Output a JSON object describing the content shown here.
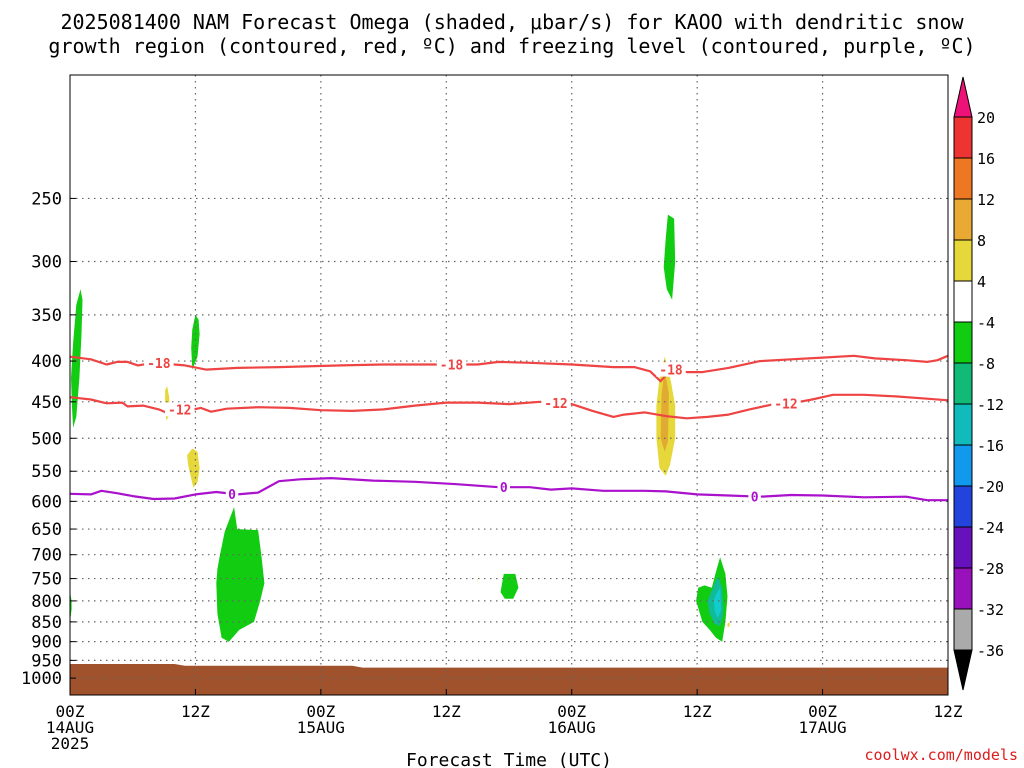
{
  "chart_data": {
    "type": "contour",
    "title": [
      "2025081400 NAM Forecast Omega (shaded, μbar/s) for KAOO with dendritic snow",
      "growth region (contoured, red, ºC) and freezing level (contoured, purple, ºC)"
    ],
    "xlabel": "Forecast Time (UTC)",
    "ylabel": "",
    "credit": "coolwx.com/models",
    "x_ticks": [
      {
        "h": 0,
        "label": [
          "00Z",
          "14AUG",
          "2025"
        ]
      },
      {
        "h": 12,
        "label": [
          "12Z"
        ]
      },
      {
        "h": 24,
        "label": [
          "00Z",
          "15AUG"
        ]
      },
      {
        "h": 36,
        "label": [
          "12Z"
        ]
      },
      {
        "h": 48,
        "label": [
          "00Z",
          "16AUG"
        ]
      },
      {
        "h": 60,
        "label": [
          "12Z"
        ]
      },
      {
        "h": 72,
        "label": [
          "00Z",
          "17AUG"
        ]
      },
      {
        "h": 84,
        "label": [
          "12Z"
        ]
      }
    ],
    "xlim": [
      0,
      84
    ],
    "y_ticks": [
      250,
      300,
      350,
      400,
      450,
      500,
      550,
      600,
      650,
      700,
      750,
      800,
      850,
      900,
      950,
      1000
    ],
    "ylim": [
      1050,
      175
    ],
    "y_scale": "log-pressure",
    "colorbar": {
      "labels": [
        "20",
        "16",
        "12",
        "8",
        "4",
        "-4",
        "-8",
        "-12",
        "-16",
        "-20",
        "-24",
        "-28",
        "-32",
        "-36"
      ],
      "colors": [
        "#ee1177",
        "#ee3333",
        "#ee7722",
        "#e8aa33",
        "#e6d83a",
        "#ffffff",
        "#11cc11",
        "#11bb77",
        "#11bbbb",
        "#1199ee",
        "#2244dd",
        "#6611bb",
        "#9911bb",
        "#aaaaaa",
        "#000000"
      ]
    },
    "surface_color": "#a0522d",
    "omega_colors": {
      "green": "#11cc11",
      "teal": "#11bb99",
      "cyan": "#11cccc",
      "yellow": "#e6d83a",
      "orange": "#e0aa33"
    },
    "series": [
      {
        "name": "-18",
        "color": "#ee4444",
        "label_hours": [
          8.5,
          36.5,
          57.5
        ],
        "points": [
          [
            0,
            395
          ],
          [
            2,
            398
          ],
          [
            3.5,
            404
          ],
          [
            4.5,
            401
          ],
          [
            5.5,
            401
          ],
          [
            6.5,
            405
          ],
          [
            8,
            402
          ],
          [
            11,
            405
          ],
          [
            13,
            410
          ],
          [
            16,
            408
          ],
          [
            20,
            407
          ],
          [
            26,
            405
          ],
          [
            30,
            404
          ],
          [
            36,
            404
          ],
          [
            39,
            404
          ],
          [
            41,
            401
          ],
          [
            44,
            402
          ],
          [
            48,
            404
          ],
          [
            52,
            407
          ],
          [
            54,
            407
          ],
          [
            55.5,
            412
          ],
          [
            56.5,
            424
          ],
          [
            57.5,
            410
          ],
          [
            59,
            413
          ],
          [
            60.5,
            413
          ],
          [
            63,
            408
          ],
          [
            66,
            400
          ],
          [
            69,
            398
          ],
          [
            72,
            396
          ],
          [
            75,
            394
          ],
          [
            77,
            397
          ],
          [
            80,
            399
          ],
          [
            82,
            401
          ],
          [
            83,
            399
          ],
          [
            84,
            394
          ]
        ]
      },
      {
        "name": "-12",
        "color": "#ee4444",
        "label_hours": [
          10.5,
          46.5,
          68.5
        ],
        "points": [
          [
            0,
            444
          ],
          [
            2,
            447
          ],
          [
            3.5,
            452
          ],
          [
            5,
            451
          ],
          [
            5.5,
            456
          ],
          [
            7,
            455
          ],
          [
            8.5,
            460
          ],
          [
            9.5,
            466
          ],
          [
            10.5,
            460
          ],
          [
            11.5,
            461
          ],
          [
            12.5,
            458
          ],
          [
            13.5,
            463
          ],
          [
            15,
            459
          ],
          [
            18,
            457
          ],
          [
            21,
            458
          ],
          [
            24,
            461
          ],
          [
            27,
            462
          ],
          [
            30,
            460
          ],
          [
            33,
            455
          ],
          [
            36,
            451
          ],
          [
            39,
            451
          ],
          [
            42,
            453
          ],
          [
            45,
            450
          ],
          [
            48,
            453
          ],
          [
            50,
            462
          ],
          [
            52,
            470
          ],
          [
            53,
            467
          ],
          [
            55,
            464
          ],
          [
            57,
            469
          ],
          [
            59,
            472
          ],
          [
            61,
            470
          ],
          [
            63,
            467
          ],
          [
            65,
            460
          ],
          [
            67,
            454
          ],
          [
            69,
            452
          ],
          [
            71,
            447
          ],
          [
            73,
            441
          ],
          [
            76,
            441
          ],
          [
            79,
            443
          ],
          [
            82,
            446
          ],
          [
            84,
            448
          ]
        ]
      },
      {
        "name": "0",
        "color": "#aa11cc",
        "label_hours": [
          15.5,
          41.5,
          65.5
        ],
        "points": [
          [
            0,
            587
          ],
          [
            2,
            588
          ],
          [
            3,
            582
          ],
          [
            4.5,
            586
          ],
          [
            6,
            591
          ],
          [
            8,
            596
          ],
          [
            10,
            595
          ],
          [
            12,
            588
          ],
          [
            14,
            584
          ],
          [
            16,
            588
          ],
          [
            18,
            585
          ],
          [
            20,
            566
          ],
          [
            22,
            563
          ],
          [
            25,
            561
          ],
          [
            29,
            565
          ],
          [
            33,
            567
          ],
          [
            37,
            571
          ],
          [
            41,
            576
          ],
          [
            44,
            576
          ],
          [
            46,
            580
          ],
          [
            48,
            578
          ],
          [
            51,
            582
          ],
          [
            53,
            582
          ],
          [
            55,
            582
          ],
          [
            57,
            583
          ],
          [
            60,
            588
          ],
          [
            63,
            590
          ],
          [
            66,
            592
          ],
          [
            69,
            589
          ],
          [
            72,
            590
          ],
          [
            76,
            593
          ],
          [
            80,
            592
          ],
          [
            82,
            598
          ],
          [
            84,
            598
          ]
        ]
      }
    ],
    "omega_regions": [
      {
        "color": "green",
        "points": [
          [
            0.3,
            485
          ],
          [
            0.6,
            470
          ],
          [
            0.9,
            420
          ],
          [
            1.1,
            370
          ],
          [
            1.2,
            335
          ],
          [
            1.0,
            325
          ],
          [
            0.6,
            340
          ],
          [
            0.3,
            380
          ],
          [
            0.1,
            420
          ],
          [
            0.2,
            460
          ]
        ]
      },
      {
        "color": "green",
        "points": [
          [
            0.05,
            840
          ],
          [
            0.15,
            820
          ],
          [
            0.15,
            800
          ],
          [
            0.05,
            785
          ]
        ]
      },
      {
        "color": "green",
        "points": [
          [
            11.7,
            410
          ],
          [
            12.2,
            395
          ],
          [
            12.4,
            370
          ],
          [
            12.3,
            355
          ],
          [
            12.0,
            350
          ],
          [
            11.7,
            365
          ],
          [
            11.6,
            385
          ]
        ]
      },
      {
        "color": "yellow",
        "points": [
          [
            9.2,
            475
          ],
          [
            9.5,
            468
          ],
          [
            9.5,
            445
          ],
          [
            9.3,
            430
          ],
          [
            9.1,
            435
          ],
          [
            9.1,
            455
          ]
        ]
      },
      {
        "color": "yellow",
        "points": [
          [
            11.3,
            540
          ],
          [
            11.8,
            577
          ],
          [
            12.2,
            568
          ],
          [
            12.4,
            545
          ],
          [
            12.2,
            520
          ],
          [
            11.7,
            515
          ],
          [
            11.2,
            525
          ]
        ]
      },
      {
        "color": "green",
        "points": [
          [
            14.3,
            705
          ],
          [
            14.8,
            655
          ],
          [
            15.7,
            610
          ],
          [
            16.0,
            650
          ],
          [
            18.0,
            652
          ],
          [
            18.3,
            700
          ],
          [
            18.6,
            760
          ],
          [
            18.2,
            800
          ],
          [
            17.6,
            850
          ],
          [
            16.2,
            870
          ],
          [
            15.2,
            900
          ],
          [
            14.5,
            890
          ],
          [
            14.1,
            830
          ],
          [
            14.0,
            760
          ],
          [
            14.1,
            730
          ]
        ]
      },
      {
        "color": "yellow",
        "points": [
          [
            38.9,
            762
          ],
          [
            39.2,
            740
          ],
          [
            39.0,
            752
          ]
        ]
      },
      {
        "color": "green",
        "points": [
          [
            41.3,
            765
          ],
          [
            41.5,
            740
          ],
          [
            42.6,
            740
          ],
          [
            42.9,
            770
          ],
          [
            42.4,
            795
          ],
          [
            41.6,
            795
          ],
          [
            41.2,
            780
          ]
        ]
      },
      {
        "color": "green",
        "points": [
          [
            57.2,
            262
          ],
          [
            57.8,
            265
          ],
          [
            57.9,
            300
          ],
          [
            57.6,
            335
          ],
          [
            57.1,
            325
          ],
          [
            56.8,
            305
          ],
          [
            57.0,
            280
          ]
        ]
      },
      {
        "color": "yellow",
        "points": [
          [
            56.9,
            395
          ],
          [
            57.5,
            425
          ],
          [
            57.9,
            455
          ],
          [
            57.9,
            500
          ],
          [
            57.4,
            540
          ],
          [
            57.0,
            557
          ],
          [
            56.4,
            545
          ],
          [
            56.1,
            500
          ],
          [
            56.1,
            455
          ],
          [
            56.4,
            420
          ]
        ]
      },
      {
        "color": "orange",
        "points": [
          [
            56.9,
            410
          ],
          [
            57.3,
            440
          ],
          [
            57.2,
            505
          ],
          [
            56.9,
            520
          ],
          [
            56.5,
            500
          ],
          [
            56.6,
            440
          ]
        ]
      },
      {
        "color": "green",
        "points": [
          [
            61.4,
            770
          ],
          [
            61.8,
            735
          ],
          [
            62.2,
            705
          ],
          [
            62.7,
            740
          ],
          [
            62.9,
            790
          ],
          [
            62.7,
            850
          ],
          [
            62.4,
            900
          ],
          [
            61.8,
            890
          ],
          [
            61.2,
            870
          ],
          [
            60.5,
            850
          ],
          [
            59.9,
            800
          ],
          [
            60.1,
            770
          ],
          [
            60.7,
            765
          ]
        ]
      },
      {
        "color": "teal",
        "points": [
          [
            61.6,
            765
          ],
          [
            62.0,
            745
          ],
          [
            62.4,
            770
          ],
          [
            62.5,
            830
          ],
          [
            62.2,
            860
          ],
          [
            61.7,
            855
          ],
          [
            61.2,
            830
          ],
          [
            61.0,
            800
          ]
        ]
      },
      {
        "color": "cyan",
        "points": [
          [
            61.8,
            785
          ],
          [
            62.2,
            770
          ],
          [
            62.3,
            820
          ],
          [
            62.0,
            840
          ],
          [
            61.7,
            825
          ],
          [
            61.6,
            800
          ]
        ]
      },
      {
        "color": "yellow",
        "points": [
          [
            62.9,
            855
          ],
          [
            63.1,
            850
          ],
          [
            63.1,
            862
          ],
          [
            62.9,
            862
          ]
        ]
      }
    ],
    "surface": [
      [
        0,
        960
      ],
      [
        10,
        960
      ],
      [
        11,
        965
      ],
      [
        27,
        965
      ],
      [
        28,
        970
      ],
      [
        84,
        970
      ]
    ]
  }
}
